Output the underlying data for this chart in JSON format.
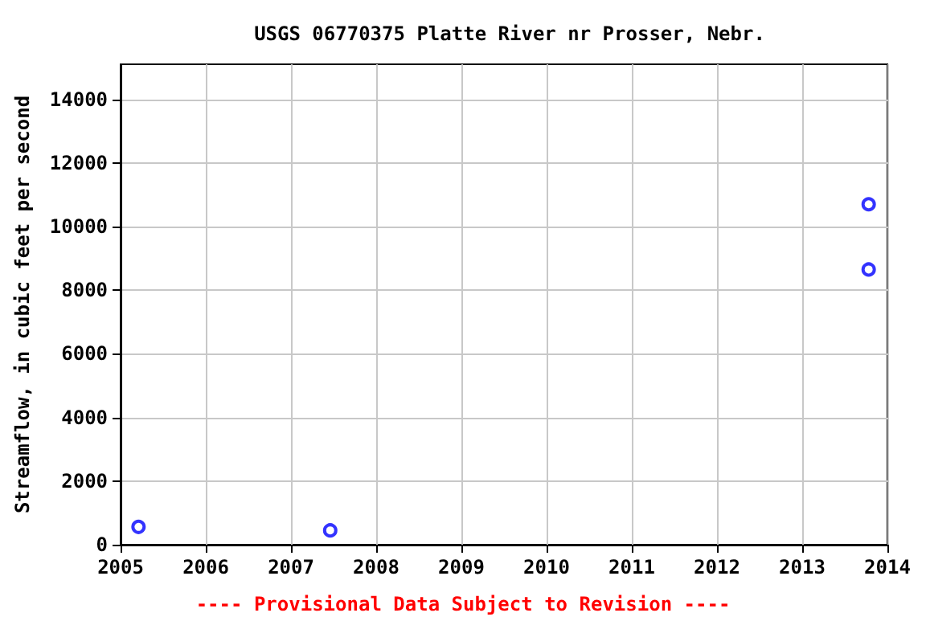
{
  "chart_data": {
    "type": "scatter",
    "title": "USGS 06770375 Platte River nr Prosser, Nebr.",
    "ylabel": "Streamflow, in cubic feet per second",
    "annotations": [
      "---- Provisional Data Subject to Revision ----"
    ],
    "x": [
      2005.21,
      2007.46,
      2013.78,
      2013.78
    ],
    "series": [
      {
        "color": "#0000ff",
        "values": [
          560,
          450,
          10700,
          8650
        ]
      }
    ],
    "xlim": [
      2005,
      2014
    ],
    "xticks": [
      2005,
      2006,
      2007,
      2008,
      2009,
      2010,
      2011,
      2012,
      2013,
      2014
    ],
    "ylim": [
      0,
      15100
    ],
    "yticks": [
      0,
      2000,
      4000,
      6000,
      8000,
      10000,
      12000,
      14000
    ],
    "grid": true,
    "marker": "circle"
  }
}
